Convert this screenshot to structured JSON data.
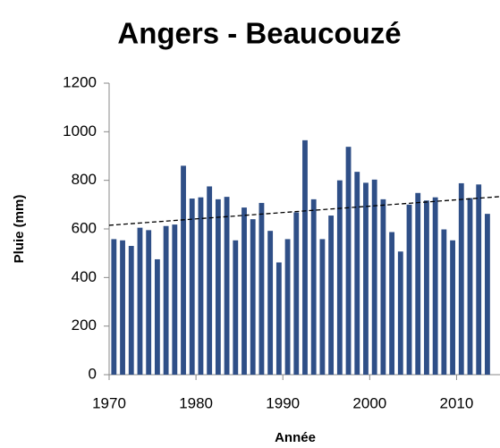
{
  "chart_data": {
    "type": "bar",
    "title": "Angers - Beaucouzé",
    "xlabel": "Année",
    "ylabel": "Pluie (mm)",
    "color": "#2f4f87",
    "x": [
      1971,
      1972,
      1973,
      1974,
      1975,
      1976,
      1977,
      1978,
      1979,
      1980,
      1981,
      1982,
      1983,
      1984,
      1985,
      1986,
      1987,
      1988,
      1989,
      1990,
      1991,
      1992,
      1993,
      1994,
      1995,
      1996,
      1997,
      1998,
      1999,
      2000,
      2001,
      2002,
      2003,
      2004,
      2005,
      2006,
      2007,
      2008,
      2009,
      2010,
      2011,
      2012,
      2013,
      2014
    ],
    "values": [
      558,
      553,
      530,
      605,
      595,
      475,
      612,
      618,
      860,
      725,
      730,
      775,
      722,
      732,
      553,
      688,
      640,
      707,
      592,
      462,
      558,
      668,
      965,
      722,
      558,
      655,
      800,
      938,
      835,
      790,
      803,
      722,
      587,
      507,
      700,
      748,
      717,
      730,
      598,
      553,
      788,
      727,
      783,
      662
    ],
    "trendline": {
      "x": [
        1970,
        2015
      ],
      "values": [
        615,
        733
      ]
    },
    "xlim": [
      1970,
      2015
    ],
    "xticks": [
      1970,
      1980,
      1990,
      2000,
      2010
    ],
    "ylim": [
      0,
      1200
    ],
    "yticks": [
      0,
      200,
      400,
      600,
      800,
      1000,
      1200
    ]
  }
}
